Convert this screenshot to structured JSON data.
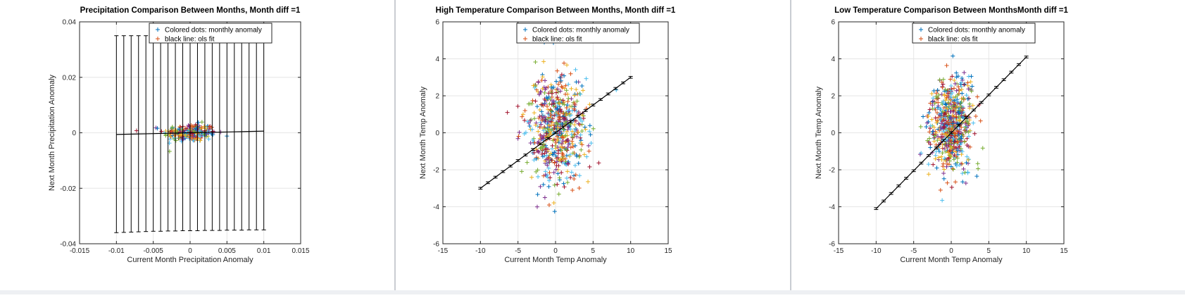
{
  "colors": {
    "series": [
      "#0072BD",
      "#D95319",
      "#EDB120",
      "#7E2F8E",
      "#77AC30",
      "#4DBEEE",
      "#A2142F"
    ],
    "fit_line": "#000000",
    "grid": "#e6e6e6",
    "axes": "#262626"
  },
  "chart_data": [
    {
      "type": "scatter",
      "title": "Precipitation Comparison Between Months, Month diff =1",
      "xlabel": "Current Month Precipitation Anomaly",
      "ylabel": "Next Month Precipitation Anomaly",
      "xlim": [
        -0.015,
        0.015
      ],
      "ylim": [
        -0.04,
        0.04
      ],
      "xticks": [
        -0.015,
        -0.01,
        -0.005,
        0,
        0.005,
        0.01,
        0.015
      ],
      "xtick_labels": [
        "-0.015",
        "-0.01",
        "-0.005",
        "0",
        "0.005",
        "0.01",
        "0.015"
      ],
      "yticks": [
        -0.04,
        -0.02,
        0,
        0.02,
        0.04
      ],
      "ytick_labels": [
        "-0.04",
        "-0.02",
        "0",
        "0.02",
        "0.04"
      ],
      "grid": true,
      "legend": {
        "position": "top-right",
        "entries": [
          "Colored dots: monthly anomaly",
          "black line: ols fit"
        ]
      },
      "scatter_stats": {
        "n": 240,
        "x_center": 0.0,
        "x_spread": 0.0018,
        "y_center": 0.0,
        "y_spread": 0.0016
      },
      "fit": {
        "x": [
          -0.01,
          -0.009,
          -0.008,
          -0.007,
          -0.006,
          -0.005,
          -0.004,
          -0.003,
          -0.002,
          -0.001,
          0,
          0.001,
          0.002,
          0.003,
          0.004,
          0.005,
          0.006,
          0.007,
          0.008,
          0.009,
          0.01
        ],
        "y": [
          -0.0006,
          -0.00054,
          -0.00048,
          -0.00042,
          -0.00036,
          -0.0003,
          -0.00024,
          -0.00018,
          -0.00012,
          -6e-05,
          0,
          6e-05,
          0.00012,
          0.00018,
          0.00024,
          0.0003,
          0.00036,
          0.00042,
          0.00048,
          0.00054,
          0.0006
        ],
        "error_low": [
          -0.036,
          -0.0359,
          -0.0358,
          -0.0357,
          -0.0356,
          -0.0355,
          -0.0355,
          -0.0354,
          -0.0354,
          -0.0353,
          -0.0353,
          -0.0353,
          -0.0352,
          -0.0352,
          -0.0352,
          -0.0351,
          -0.0351,
          -0.0351,
          -0.035,
          -0.035,
          -0.035
        ],
        "error_high": [
          0.035,
          0.035,
          0.035,
          0.035,
          0.035,
          0.035,
          0.035,
          0.035,
          0.035,
          0.035,
          0.035,
          0.035,
          0.035,
          0.035,
          0.035,
          0.035,
          0.035,
          0.035,
          0.035,
          0.035,
          0.035
        ]
      }
    },
    {
      "type": "scatter",
      "title": "High Temperature Comparison Between Months, Month diff =1",
      "xlabel": "Current Month Temp Anomaly",
      "ylabel": "Next Month Temp Anomaly",
      "xlim": [
        -15,
        15
      ],
      "ylim": [
        -6,
        6
      ],
      "xticks": [
        -15,
        -10,
        -5,
        0,
        5,
        10,
        15
      ],
      "xtick_labels": [
        "-15",
        "-10",
        "-5",
        "0",
        "5",
        "10",
        "15"
      ],
      "yticks": [
        -6,
        -4,
        -2,
        0,
        2,
        4,
        6
      ],
      "ytick_labels": [
        "-6",
        "-4",
        "-2",
        "0",
        "2",
        "4",
        "6"
      ],
      "grid": true,
      "legend": {
        "position": "top-right",
        "entries": [
          "Colored dots: monthly anomaly",
          "black line: ols fit"
        ]
      },
      "scatter_stats": {
        "n": 620,
        "x_center": 0.0,
        "x_spread": 2.0,
        "y_center": 0.2,
        "y_spread": 1.5
      },
      "fit": {
        "x": [
          -10,
          -9,
          -8,
          -7,
          -6,
          -5,
          -4,
          -3,
          -2,
          -1,
          0,
          1,
          2,
          3,
          4,
          5,
          6,
          7,
          8,
          9,
          10
        ],
        "y": [
          -3,
          -2.7,
          -2.4,
          -2.1,
          -1.8,
          -1.5,
          -1.2,
          -0.9,
          -0.6,
          -0.3,
          0,
          0.3,
          0.6,
          0.9,
          1.2,
          1.5,
          1.8,
          2.1,
          2.4,
          2.7,
          3
        ],
        "error": 0.05
      }
    },
    {
      "type": "scatter",
      "title": "Low Temperature Comparison Between MonthsMonth diff =1",
      "xlabel": "Current Month Temp Anomaly",
      "ylabel": "Next Month Temp Anomaly",
      "xlim": [
        -15,
        15
      ],
      "ylim": [
        -6,
        6
      ],
      "xticks": [
        -15,
        -10,
        -5,
        0,
        5,
        10,
        15
      ],
      "xtick_labels": [
        "-15",
        "-10",
        "-5",
        "0",
        "5",
        "10",
        "15"
      ],
      "yticks": [
        -6,
        -4,
        -2,
        0,
        2,
        4,
        6
      ],
      "ytick_labels": [
        "-6",
        "-4",
        "-2",
        "0",
        "2",
        "4",
        "6"
      ],
      "grid": true,
      "legend": {
        "position": "top-right",
        "entries": [
          "Colored dots: monthly anomaly",
          "black line: ols fit"
        ]
      },
      "scatter_stats": {
        "n": 620,
        "x_center": 0.0,
        "x_spread": 1.4,
        "y_center": 0.3,
        "y_spread": 1.3
      },
      "fit": {
        "x": [
          -10,
          -9,
          -8,
          -7,
          -6,
          -5,
          -4,
          -3,
          -2,
          -1,
          0,
          1,
          2,
          3,
          4,
          5,
          6,
          7,
          8,
          9,
          10
        ],
        "y": [
          -4.1,
          -3.69,
          -3.28,
          -2.87,
          -2.46,
          -2.05,
          -1.64,
          -1.23,
          -0.82,
          -0.41,
          0,
          0.41,
          0.82,
          1.23,
          1.64,
          2.05,
          2.46,
          2.87,
          3.28,
          3.69,
          4.1
        ],
        "error": 0.05
      }
    }
  ]
}
